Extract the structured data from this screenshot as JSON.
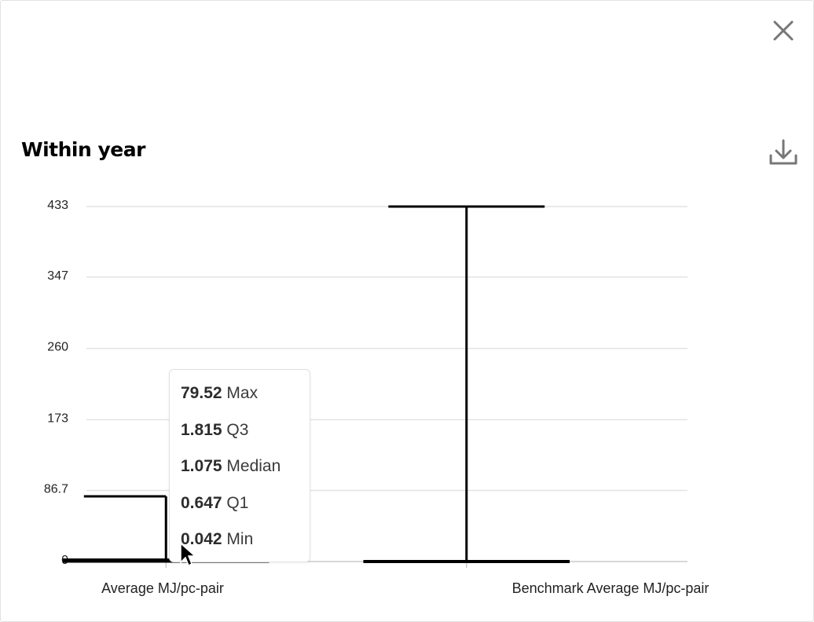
{
  "close_icon": "close-icon",
  "download_icon": "download-icon",
  "chart_data": {
    "type": "boxplot",
    "title": "Within year",
    "ylim": [
      0,
      433
    ],
    "y_ticks": [
      "0",
      "86.7",
      "173",
      "260",
      "347",
      "433"
    ],
    "categories": [
      "Average MJ/pc-pair",
      "Benchmark Average MJ/pc-pair"
    ],
    "boxes": [
      {
        "category": "Average MJ/pc-pair",
        "min": 0.042,
        "q1": 0.647,
        "median": 1.075,
        "q3": 1.815,
        "max": 79.52
      },
      {
        "category": "Benchmark Average MJ/pc-pair",
        "min": 0,
        "q1": 0,
        "median": 0,
        "q3": 0,
        "max": 433
      }
    ],
    "grid": true,
    "legend": "none"
  },
  "tooltip": {
    "rows": [
      {
        "value": "79.52",
        "label": "Max"
      },
      {
        "value": "1.815",
        "label": "Q3"
      },
      {
        "value": "1.075",
        "label": "Median"
      },
      {
        "value": "0.647",
        "label": "Q1"
      },
      {
        "value": "0.042",
        "label": "Min"
      }
    ]
  }
}
